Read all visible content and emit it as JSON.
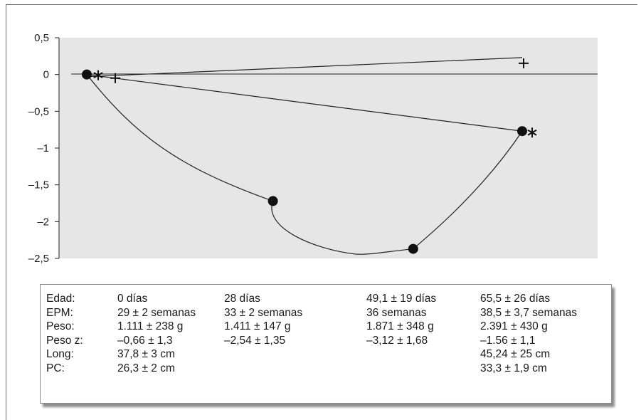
{
  "chart_data": {
    "type": "line",
    "ylim": [
      -2.5,
      0.5
    ],
    "y_ticks": [
      "0,5",
      "0",
      "–0,5",
      "–1",
      "–1,5",
      "–2",
      "–2,5"
    ],
    "y_tick_values": [
      0.5,
      0,
      -0.5,
      -1,
      -1.5,
      -2,
      -2.5
    ],
    "grid": false,
    "background": "#e6e6e6",
    "series": [
      {
        "marker": "circle",
        "x": [
          0,
          28,
          49.1,
          65.5
        ],
        "values": [
          0,
          -1.72,
          -2.37,
          -0.77
        ]
      },
      {
        "marker": "asterisk",
        "x": [
          0,
          65.5
        ],
        "values": [
          0,
          -0.77
        ]
      },
      {
        "marker": "plus",
        "x": [
          0,
          65.5
        ],
        "values": [
          -0.03,
          0.23
        ]
      }
    ]
  },
  "table": {
    "rows": [
      [
        "Edad:",
        "0 días",
        "28 días",
        "49,1 ± 19 días",
        "65,5 ± 26 días"
      ],
      [
        "EPM:",
        "29 ± 2 semanas",
        "33 ± 2 semanas",
        "36 semanas",
        "38,5 ± 3,7 semanas"
      ],
      [
        "Peso:",
        "1.111 ± 238 g",
        "1.411 ± 147 g",
        "1.871 ± 348 g",
        "2.391 ± 430 g"
      ],
      [
        "Peso z:",
        "–0,66 ± 1,3",
        "–2,54 ± 1,35",
        "–3,12 ± 1,68",
        "–1.56 ± 1,1"
      ],
      [
        "Long:",
        "37,8 ± 3 cm",
        "",
        "",
        "45,24 ± 25 cm"
      ],
      [
        "PC:",
        "26,3 ± 2 cm",
        "",
        "",
        "33,3 ± 1,9 cm"
      ]
    ]
  }
}
